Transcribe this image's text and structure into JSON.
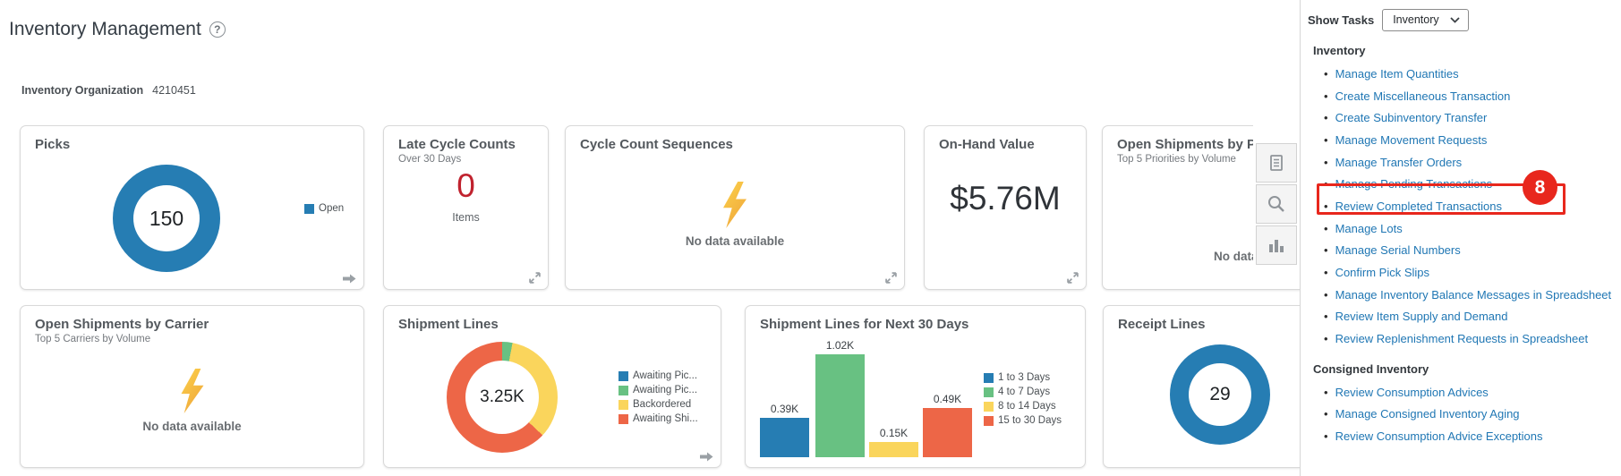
{
  "page": {
    "title": "Inventory Management",
    "help_glyph": "?"
  },
  "org": {
    "label": "Inventory Organization",
    "value": "4210451"
  },
  "cards": {
    "picks": {
      "title": "Picks"
    },
    "late_cycle_counts": {
      "title": "Late Cycle Counts",
      "subtitle": "Over 30 Days",
      "value": "0",
      "unit_label": "Items"
    },
    "cycle_count_sequences": {
      "title": "Cycle Count Sequences",
      "empty_text": "No data available"
    },
    "on_hand_value": {
      "title": "On-Hand Value",
      "value": "$5.76M"
    },
    "open_shipments_priority": {
      "title": "Open Shipments by Priority",
      "subtitle": "Top 5 Priorities by Volume",
      "empty_text": "No data available"
    },
    "open_shipments_carrier": {
      "title": "Open Shipments by Carrier",
      "subtitle": "Top 5 Carriers by Volume",
      "empty_text": "No data available"
    },
    "shipment_lines": {
      "title": "Shipment Lines"
    },
    "shipment_lines_next30": {
      "title": "Shipment Lines for Next 30 Days"
    },
    "receipt_lines": {
      "title": "Receipt Lines"
    }
  },
  "chart_data": [
    {
      "id": "picks",
      "type": "donut",
      "title": "Picks",
      "center_value": "150",
      "slices": [
        {
          "label": "Open",
          "pct": 100,
          "color": "#267db3"
        }
      ],
      "legend_position": "right"
    },
    {
      "id": "shipment_lines",
      "type": "donut",
      "title": "Shipment Lines",
      "center_value": "3.25K",
      "slices": [
        {
          "label": "Awaiting Pic...",
          "pct": 0,
          "color": "#267db3"
        },
        {
          "label": "Awaiting Pic...",
          "pct": 3,
          "color": "#68c182"
        },
        {
          "label": "Backordered",
          "pct": 34,
          "color": "#fad55c"
        },
        {
          "label": "Awaiting Shi...",
          "pct": 63,
          "color": "#ed6647"
        }
      ],
      "legend_position": "right"
    },
    {
      "id": "shipment_lines_next_30_days",
      "type": "bar",
      "title": "Shipment Lines for Next 30 Days",
      "categories": [
        "1 to 3 Days",
        "4 to 7 Days",
        "8 to 14 Days",
        "15 to 30 Days"
      ],
      "values": [
        0.39,
        1.02,
        0.15,
        0.49
      ],
      "unit": "K",
      "labels": [
        "0.39K",
        "1.02K",
        "0.15K",
        "0.49K"
      ],
      "colors": [
        "#267db3",
        "#68c182",
        "#fad55c",
        "#ed6647"
      ],
      "ylim": [
        0,
        1.1
      ],
      "grid": false,
      "legend_position": "right"
    },
    {
      "id": "receipt_lines",
      "type": "donut",
      "title": "Receipt Lines",
      "center_value": "29",
      "slices": [
        {
          "label": "Receipt Lines",
          "pct": 100,
          "color": "#267db3"
        }
      ],
      "legend_position": "none"
    }
  ],
  "side_toolbar": {
    "buttons": [
      "table-view",
      "search",
      "bar-chart-view"
    ]
  },
  "tasks_panel": {
    "show_tasks_label": "Show Tasks",
    "dropdown_value": "Inventory",
    "sections": [
      {
        "title": "Inventory",
        "items": [
          "Manage Item Quantities",
          "Create Miscellaneous Transaction",
          "Create Subinventory Transfer",
          "Manage Movement Requests",
          "Manage Transfer Orders",
          "Manage Pending Transactions",
          "Review Completed Transactions",
          "Manage Lots",
          "Manage Serial Numbers",
          "Confirm Pick Slips",
          "Manage Inventory Balance Messages in Spreadsheet",
          "Review Item Supply and Demand",
          "Review Replenishment Requests in Spreadsheet"
        ]
      },
      {
        "title": "Consigned Inventory",
        "items": [
          "Review Consumption Advices",
          "Manage Consigned Inventory Aging",
          "Review Consumption Advice Exceptions"
        ]
      }
    ]
  },
  "annotation": {
    "badge": "8",
    "highlighted_item": "Review Completed Transactions",
    "color": "#e8271d"
  },
  "colors": {
    "chart_blue": "#267db3",
    "chart_green": "#68c182",
    "chart_yellow": "#fad55c",
    "chart_red": "#ed6647",
    "link_blue": "#2077b4",
    "alert_red": "#c0222e",
    "annotation_red": "#e8271d"
  }
}
